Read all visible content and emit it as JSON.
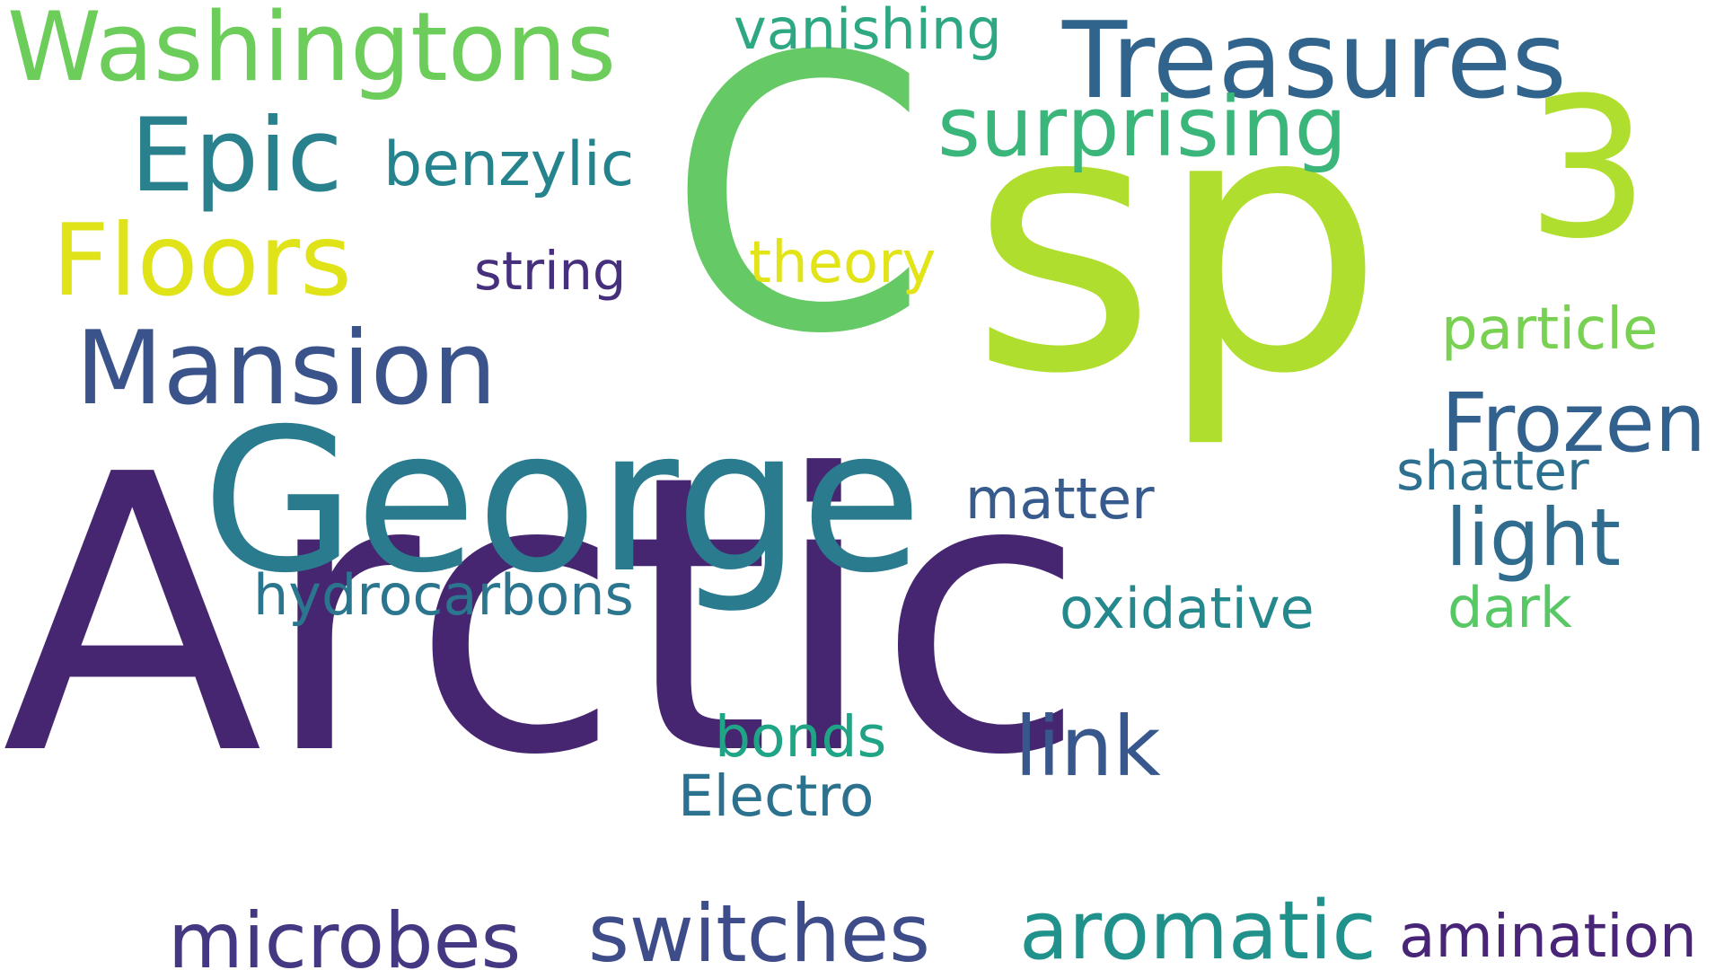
{
  "background_color": "#ffffff",
  "words": [
    {
      "id": "arctic",
      "text": "Arctic",
      "color": "#472671"
    },
    {
      "id": "c",
      "text": "C",
      "color": "#65c965"
    },
    {
      "id": "sp",
      "text": "sp",
      "color": "#b0de2e"
    },
    {
      "id": "three",
      "text": "3",
      "color": "#b0de2e"
    },
    {
      "id": "george",
      "text": "George",
      "color": "#2a7b8e"
    },
    {
      "id": "washingtons",
      "text": "Washingtons",
      "color": "#6ccd5a"
    },
    {
      "id": "treasures",
      "text": "Treasures",
      "color": "#31648d"
    },
    {
      "id": "epic",
      "text": "Epic",
      "color": "#28818d"
    },
    {
      "id": "floors",
      "text": "Floors",
      "color": "#dfe318"
    },
    {
      "id": "mansion",
      "text": "Mansion",
      "color": "#3b538b"
    },
    {
      "id": "surprising",
      "text": "surprising",
      "color": "#3bb67a"
    },
    {
      "id": "vanishing",
      "text": "vanishing",
      "color": "#2ea883"
    },
    {
      "id": "benzylic",
      "text": "benzylic",
      "color": "#25838e"
    },
    {
      "id": "string",
      "text": "string",
      "color": "#462f7c"
    },
    {
      "id": "theory",
      "text": "theory",
      "color": "#e2e418"
    },
    {
      "id": "particle",
      "text": "particle",
      "color": "#78d152"
    },
    {
      "id": "frozen",
      "text": "Frozen",
      "color": "#33618d"
    },
    {
      "id": "shatter",
      "text": "shatter",
      "color": "#2d6f8e"
    },
    {
      "id": "light",
      "text": "light",
      "color": "#2f6c8e"
    },
    {
      "id": "matter",
      "text": "matter",
      "color": "#375b8d"
    },
    {
      "id": "hydrocarbons",
      "text": "hydrocarbons",
      "color": "#2b768e"
    },
    {
      "id": "oxidative",
      "text": "oxidative",
      "color": "#24888d"
    },
    {
      "id": "dark",
      "text": "dark",
      "color": "#58c765"
    },
    {
      "id": "link",
      "text": "link",
      "color": "#38578c"
    },
    {
      "id": "bonds",
      "text": "bonds",
      "color": "#20a486"
    },
    {
      "id": "electro",
      "text": "Electro",
      "color": "#2c728e"
    },
    {
      "id": "microbes",
      "text": "microbes",
      "color": "#453882"
    },
    {
      "id": "switches",
      "text": "switches",
      "color": "#3e4c8a"
    },
    {
      "id": "aromatic",
      "text": "aromatic",
      "color": "#21918c"
    },
    {
      "id": "amination",
      "text": "amination",
      "color": "#482576"
    }
  ]
}
